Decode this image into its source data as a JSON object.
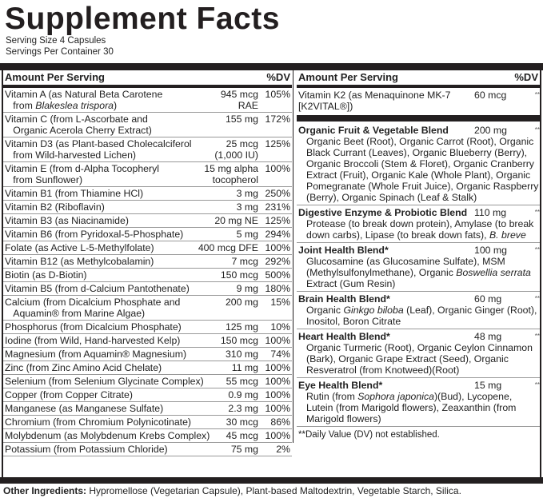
{
  "title": "Supplement Facts",
  "serving_size": "Serving Size 4 Capsules",
  "servings_per_container": "Servings Per Container 30",
  "header": {
    "amount": "Amount Per Serving",
    "dv": "%DV"
  },
  "left_rows": [
    {
      "name": [
        [
          "Vitamin A (as Natural Beta Carotene",
          0
        ],
        [
          "\nfrom ",
          0
        ],
        [
          "Blakeslea trispora",
          1
        ],
        [
          ")",
          0
        ]
      ],
      "amount": "945 mcg\nRAE",
      "dv": "105%"
    },
    {
      "name": [
        [
          "Vitamin C (from L-Ascorbate and\nOrganic Acerola Cherry Extract)",
          0
        ]
      ],
      "amount": "155 mg",
      "dv": "172%"
    },
    {
      "name": [
        [
          "Vitamin D3 (as Plant-based Cholecalciferol\nfrom Wild-harvested Lichen)",
          0
        ]
      ],
      "amount": "25 mcg\n(1,000 IU)",
      "dv": "125%"
    },
    {
      "name": [
        [
          "Vitamin E (from d-Alpha Tocopheryl\nfrom Sunflower)",
          0
        ]
      ],
      "amount": "15 mg alpha\ntocopherol",
      "dv": "100%"
    },
    {
      "name": [
        [
          "Vitamin B1 (from Thiamine HCl)",
          0
        ]
      ],
      "amount": "3 mg",
      "dv": "250%"
    },
    {
      "name": [
        [
          "Vitamin B2 (Riboflavin)",
          0
        ]
      ],
      "amount": "3 mg",
      "dv": "231%"
    },
    {
      "name": [
        [
          "Vitamin B3 (as Niacinamide)",
          0
        ]
      ],
      "amount": "20 mg NE",
      "dv": "125%"
    },
    {
      "name": [
        [
          "Vitamin B6 (from Pyridoxal-5-Phosphate)",
          0
        ]
      ],
      "amount": "5 mg",
      "dv": "294%"
    },
    {
      "name": [
        [
          "Folate (as Active L-5-Methylfolate)",
          0
        ]
      ],
      "amount": "400 mcg DFE",
      "dv": "100%"
    },
    {
      "name": [
        [
          "Vitamin B12 (as Methylcobalamin)",
          0
        ]
      ],
      "amount": "7 mcg",
      "dv": "292%"
    },
    {
      "name": [
        [
          "Biotin (as D-Biotin)",
          0
        ]
      ],
      "amount": "150 mcg",
      "dv": "500%"
    },
    {
      "name": [
        [
          "Vitamin B5 (from d-Calcium Pantothenate)",
          0
        ]
      ],
      "amount": "9 mg",
      "dv": "180%"
    },
    {
      "name": [
        [
          "Calcium (from Dicalcium Phosphate and\nAquamin® from Marine Algae)",
          0
        ]
      ],
      "amount": "200 mg",
      "dv": "15%"
    },
    {
      "name": [
        [
          "Phosphorus (from Dicalcium Phosphate)",
          0
        ]
      ],
      "amount": "125 mg",
      "dv": "10%"
    },
    {
      "name": [
        [
          "Iodine (from Wild, Hand-harvested Kelp)",
          0
        ]
      ],
      "amount": "150 mcg",
      "dv": "100%"
    },
    {
      "name": [
        [
          "Magnesium (from Aquamin® Magnesium)",
          0
        ]
      ],
      "amount": "310 mg",
      "dv": "74%"
    },
    {
      "name": [
        [
          "Zinc (from Zinc Amino Acid Chelate)",
          0
        ]
      ],
      "amount": "11 mg",
      "dv": "100%"
    },
    {
      "name": [
        [
          "Selenium (from Selenium Glycinate Complex)",
          0
        ]
      ],
      "amount": "55 mcg",
      "dv": "100%"
    },
    {
      "name": [
        [
          "Copper (from Copper Citrate)",
          0
        ]
      ],
      "amount": "0.9 mg",
      "dv": "100%"
    },
    {
      "name": [
        [
          "Manganese (as Manganese Sulfate)",
          0
        ]
      ],
      "amount": "2.3 mg",
      "dv": "100%"
    },
    {
      "name": [
        [
          "Chromium (from Chromium Polynicotinate)",
          0
        ]
      ],
      "amount": "30 mcg",
      "dv": "86%"
    },
    {
      "name": [
        [
          "Molybdenum (as Molybdenum Krebs Complex)",
          0
        ]
      ],
      "amount": "45 mcg",
      "dv": "100%"
    },
    {
      "name": [
        [
          "Potassium (from Potassium Chloride)",
          0
        ]
      ],
      "amount": "75 mg",
      "dv": "2%"
    }
  ],
  "vitamin_k2": {
    "name": "Vitamin K2 (as Menaquinone MK-7\n[K2VITAL®])",
    "amount": "60 mcg",
    "dv": "**"
  },
  "blends": [
    {
      "name": "Organic Fruit & Vegetable Blend",
      "amount": "200 mg",
      "dv": "**",
      "contents": [
        [
          "Organic Beet (Root), Organic Carrot (Root), Organic Black Currant (Leaves), Organic Blueberry (Berry), Organic Broccoli (Stem & Floret), Organic Cranberry Extract (Fruit), Organic Kale (Whole Plant), Organic Pomegranate (Whole Fruit Juice), Organic Raspberry (Berry), Organic Spinach (Leaf & Stalk)",
          0
        ]
      ]
    },
    {
      "name": "Digestive Enzyme & Probiotic Blend",
      "amount": "110 mg",
      "dv": "**",
      "contents": [
        [
          "Protease (to break down protein), Amylase (to break down carbs), Lipase (to break down fats), ",
          0
        ],
        [
          "B. breve",
          1
        ]
      ]
    },
    {
      "name": "Joint Health Blend*",
      "amount": "100 mg",
      "dv": "**",
      "contents": [
        [
          "Glucosamine (as Glucosamine Sulfate), MSM (Methylsulfonylmethane), Organic ",
          0
        ],
        [
          "Boswellia serrata",
          1
        ],
        [
          " Extract (Gum Resin)",
          0
        ]
      ]
    },
    {
      "name": "Brain Health Blend*",
      "amount": "60 mg",
      "dv": "**",
      "contents": [
        [
          "Organic ",
          0
        ],
        [
          "Ginkgo biloba",
          1
        ],
        [
          " (Leaf), Organic Ginger (Root), Inositol, Boron Citrate",
          0
        ]
      ]
    },
    {
      "name": "Heart Health Blend*",
      "amount": "48 mg",
      "dv": "**",
      "contents": [
        [
          "Organic Turmeric (Root), Organic Ceylon Cinnamon (Bark), Organic Grape Extract (Seed), Organic Resveratrol (from Knotweed)(Root)",
          0
        ]
      ]
    },
    {
      "name": "Eye Health Blend*",
      "amount": "15 mg",
      "dv": "**",
      "contents": [
        [
          "Rutin (from ",
          0
        ],
        [
          "Sophora japonica",
          1
        ],
        [
          ")(Bud), Lycopene, Lutein (from Marigold flowers), Zeaxanthin (from Marigold flowers)",
          0
        ]
      ]
    }
  ],
  "dv_note": "**Daily Value (DV) not established.",
  "other_ingredients": {
    "label": "Other Ingredients:",
    "text": " Hypromellose (Vegetarian Capsule), Plant-based Maltodextrin, Vegetable Starch, Silica."
  }
}
